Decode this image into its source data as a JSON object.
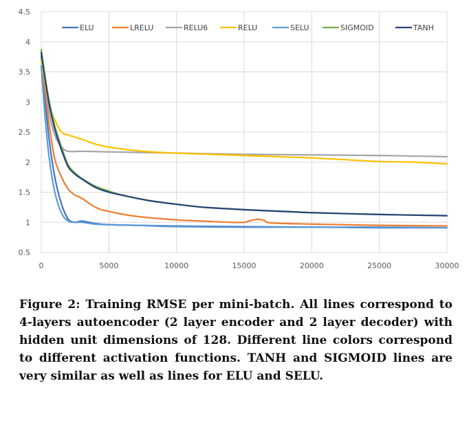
{
  "chart_data": {
    "type": "line",
    "title": "",
    "xlabel": "",
    "ylabel": "",
    "xlim": [
      0,
      30000
    ],
    "ylim": [
      0.5,
      4.5
    ],
    "x_ticks": [
      0,
      5000,
      10000,
      15000,
      20000,
      25000,
      30000
    ],
    "y_ticks": [
      0.5,
      1,
      1.5,
      2,
      2.5,
      3,
      3.5,
      4,
      4.5
    ],
    "x_tick_labels": [
      "0",
      "5000",
      "10000",
      "15000",
      "20000",
      "25000",
      "30000"
    ],
    "y_tick_labels": [
      "0.5",
      "1",
      "1.5",
      "2",
      "2.5",
      "3",
      "3.5",
      "4",
      "4.5"
    ],
    "grid": "on",
    "legend_position": "top",
    "series": [
      {
        "name": "ELU",
        "color": "#4472C4",
        "points": [
          [
            0,
            3.75
          ],
          [
            300,
            3.0
          ],
          [
            600,
            2.35
          ],
          [
            1000,
            1.75
          ],
          [
            1500,
            1.3
          ],
          [
            2000,
            1.05
          ],
          [
            2500,
            1.0
          ],
          [
            3000,
            1.02
          ],
          [
            4000,
            0.98
          ],
          [
            5000,
            0.96
          ],
          [
            7000,
            0.95
          ],
          [
            10000,
            0.93
          ],
          [
            15000,
            0.92
          ],
          [
            20000,
            0.92
          ],
          [
            25000,
            0.91
          ],
          [
            30000,
            0.91
          ]
        ]
      },
      {
        "name": "LRELU",
        "color": "#ED7D31",
        "points": [
          [
            0,
            3.7
          ],
          [
            300,
            3.15
          ],
          [
            600,
            2.6
          ],
          [
            1000,
            2.05
          ],
          [
            1500,
            1.75
          ],
          [
            2000,
            1.55
          ],
          [
            2500,
            1.45
          ],
          [
            3000,
            1.4
          ],
          [
            4000,
            1.25
          ],
          [
            5000,
            1.18
          ],
          [
            7000,
            1.1
          ],
          [
            10000,
            1.04
          ],
          [
            12000,
            1.02
          ],
          [
            14000,
            1.0
          ],
          [
            15000,
            1.0
          ],
          [
            15500,
            1.03
          ],
          [
            16000,
            1.05
          ],
          [
            16500,
            1.03
          ],
          [
            17000,
            0.99
          ],
          [
            20000,
            0.97
          ],
          [
            25000,
            0.95
          ],
          [
            30000,
            0.94
          ]
        ]
      },
      {
        "name": "RELU6",
        "color": "#A5A5A5",
        "points": [
          [
            0,
            3.8
          ],
          [
            300,
            3.3
          ],
          [
            600,
            2.8
          ],
          [
            1000,
            2.45
          ],
          [
            1500,
            2.25
          ],
          [
            2000,
            2.18
          ],
          [
            3000,
            2.18
          ],
          [
            5000,
            2.17
          ],
          [
            10000,
            2.15
          ],
          [
            15000,
            2.13
          ],
          [
            20000,
            2.12
          ],
          [
            25000,
            2.11
          ],
          [
            30000,
            2.09
          ]
        ]
      },
      {
        "name": "RELU",
        "color": "#FFC000",
        "points": [
          [
            0,
            3.7
          ],
          [
            300,
            3.3
          ],
          [
            600,
            2.95
          ],
          [
            1000,
            2.7
          ],
          [
            1500,
            2.5
          ],
          [
            2000,
            2.45
          ],
          [
            3000,
            2.38
          ],
          [
            4000,
            2.3
          ],
          [
            5000,
            2.25
          ],
          [
            7500,
            2.18
          ],
          [
            10000,
            2.15
          ],
          [
            12500,
            2.13
          ],
          [
            15000,
            2.11
          ],
          [
            17500,
            2.09
          ],
          [
            20000,
            2.07
          ],
          [
            22500,
            2.04
          ],
          [
            25000,
            2.01
          ],
          [
            27500,
            2.0
          ],
          [
            30000,
            1.97
          ]
        ]
      },
      {
        "name": "SELU",
        "color": "#5B9BD5",
        "points": [
          [
            0,
            3.6
          ],
          [
            300,
            2.7
          ],
          [
            600,
            2.05
          ],
          [
            1000,
            1.5
          ],
          [
            1500,
            1.15
          ],
          [
            2000,
            1.02
          ],
          [
            2500,
            1.0
          ],
          [
            3000,
            1.0
          ],
          [
            4000,
            0.97
          ],
          [
            5000,
            0.96
          ],
          [
            7000,
            0.95
          ],
          [
            10000,
            0.94
          ],
          [
            15000,
            0.93
          ],
          [
            20000,
            0.92
          ],
          [
            25000,
            0.92
          ],
          [
            30000,
            0.91
          ]
        ]
      },
      {
        "name": "SIGMOID",
        "color": "#70AD47",
        "points": [
          [
            0,
            3.87
          ],
          [
            300,
            3.4
          ],
          [
            600,
            3.0
          ],
          [
            1000,
            2.6
          ],
          [
            1500,
            2.25
          ],
          [
            2000,
            1.95
          ],
          [
            2500,
            1.82
          ],
          [
            3000,
            1.73
          ],
          [
            4000,
            1.6
          ],
          [
            5000,
            1.52
          ],
          [
            6000,
            1.45
          ],
          [
            8000,
            1.36
          ],
          [
            10000,
            1.3
          ],
          [
            12000,
            1.25
          ],
          [
            15000,
            1.21
          ],
          [
            18000,
            1.18
          ],
          [
            20000,
            1.16
          ],
          [
            25000,
            1.13
          ],
          [
            30000,
            1.11
          ]
        ]
      },
      {
        "name": "TANH",
        "color": "#264478",
        "points": [
          [
            0,
            3.82
          ],
          [
            300,
            3.35
          ],
          [
            600,
            2.95
          ],
          [
            1000,
            2.55
          ],
          [
            1500,
            2.2
          ],
          [
            2000,
            1.92
          ],
          [
            2500,
            1.8
          ],
          [
            3000,
            1.72
          ],
          [
            4000,
            1.58
          ],
          [
            5000,
            1.5
          ],
          [
            6000,
            1.45
          ],
          [
            8000,
            1.36
          ],
          [
            10000,
            1.3
          ],
          [
            12000,
            1.25
          ],
          [
            15000,
            1.21
          ],
          [
            18000,
            1.18
          ],
          [
            20000,
            1.16
          ],
          [
            25000,
            1.13
          ],
          [
            30000,
            1.11
          ]
        ]
      }
    ]
  },
  "caption": "Figure 2: Training RMSE per mini-batch. All lines correspond to 4-layers autoencoder (2 layer encoder and 2 layer decoder) with hidden unit dimensions of 128. Different line colors correspond to different activation functions. TANH and SIGMOID lines are very similar as well as lines for ELU and SELU.",
  "colors": {
    "grid": "#D9D9D9",
    "tick_text": "#595959"
  }
}
